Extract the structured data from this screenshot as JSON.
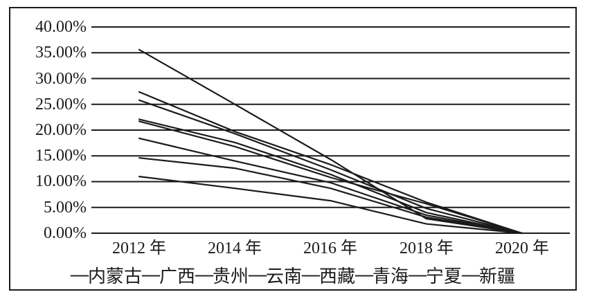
{
  "chart_data": {
    "type": "line",
    "title": "",
    "xlabel": "",
    "ylabel": "",
    "categories": [
      "2012 年",
      "2014 年",
      "2016 年",
      "2018 年",
      "2020 年"
    ],
    "y_tick_labels": [
      "40.00%",
      "35.00%",
      "30.00%",
      "25.00%",
      "20.00%",
      "15.00%",
      "10.00%",
      "5.00%",
      "0.00%"
    ],
    "ylim": [
      0,
      40
    ],
    "y_tick_step": 5,
    "grid": "horizontal",
    "legend_position": "bottom",
    "legend_dash": "—",
    "line_color": "#1b1b1b",
    "background": "#ffffff",
    "series": [
      {
        "name": "内蒙古",
        "values": [
          11.0,
          8.7,
          6.3,
          1.8,
          0.0
        ]
      },
      {
        "name": "广西",
        "values": [
          18.4,
          14.0,
          9.8,
          3.5,
          0.0
        ]
      },
      {
        "name": "贵州",
        "values": [
          27.4,
          19.7,
          13.3,
          6.0,
          0.0
        ]
      },
      {
        "name": "云南",
        "values": [
          25.8,
          19.3,
          12.3,
          4.8,
          0.0
        ]
      },
      {
        "name": "西藏",
        "values": [
          35.6,
          25.0,
          14.3,
          2.8,
          0.0
        ]
      },
      {
        "name": "青海",
        "values": [
          22.1,
          17.6,
          11.4,
          4.0,
          0.0
        ]
      },
      {
        "name": "宁夏",
        "values": [
          14.6,
          12.6,
          8.7,
          3.1,
          0.0
        ]
      },
      {
        "name": "新疆",
        "values": [
          21.7,
          16.8,
          10.8,
          5.7,
          0.0
        ]
      }
    ]
  }
}
